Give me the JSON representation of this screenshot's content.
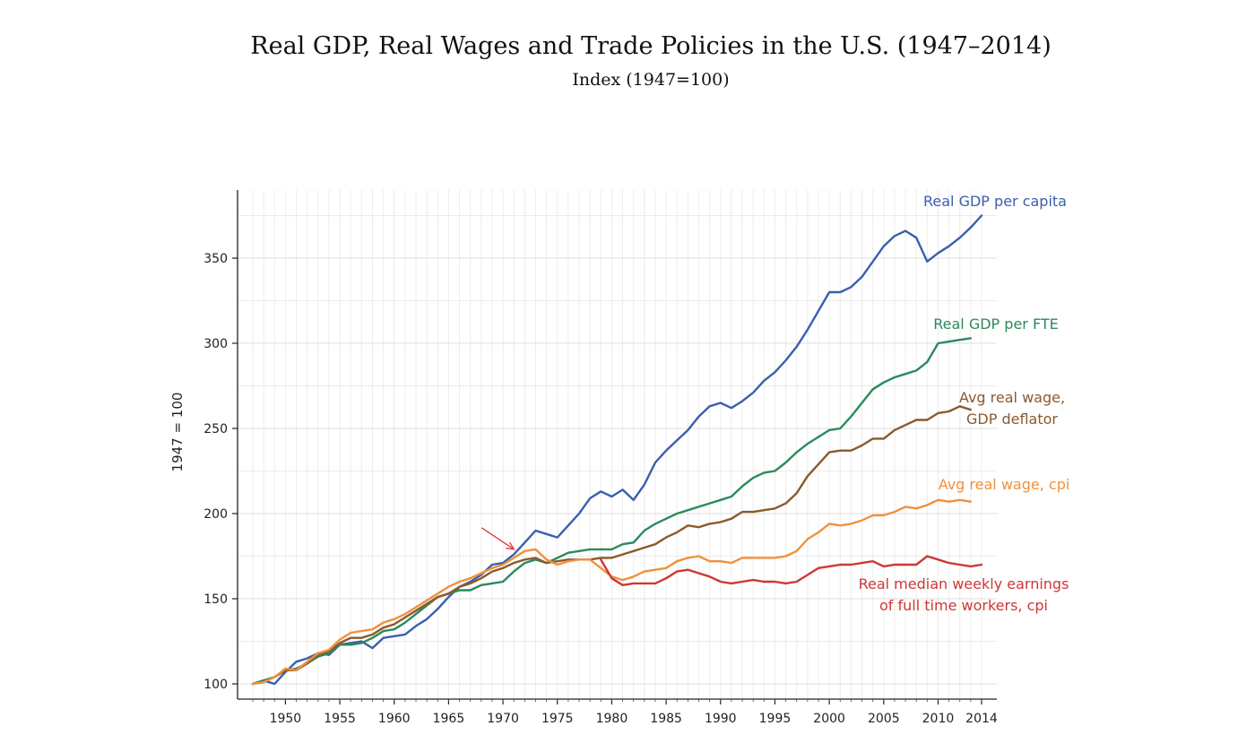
{
  "chart_data": {
    "type": "line",
    "title": "Real GDP, Real Wages and Trade Policies in the U.S. (1947–2014)",
    "subtitle": "Index (1947=100)",
    "ylabel": "1947 = 100",
    "xlim": [
      1947,
      2014
    ],
    "ylim": [
      95,
      380
    ],
    "x_ticks": [
      1950,
      1955,
      1960,
      1965,
      1970,
      1975,
      1980,
      1985,
      1990,
      1995,
      2000,
      2005,
      2010,
      2014
    ],
    "y_ticks": [
      100,
      150,
      200,
      250,
      300,
      350
    ],
    "grid": true,
    "annotations": [
      {
        "type": "arrow",
        "x": 1971,
        "y": 178,
        "color": "#e0403a"
      }
    ],
    "series": [
      {
        "name": "Real GDP per capita",
        "label_lines": [
          "Real GDP per capita"
        ],
        "color": "#3a5fad",
        "x": [
          1947,
          1948,
          1949,
          1950,
          1951,
          1952,
          1953,
          1954,
          1955,
          1956,
          1957,
          1958,
          1959,
          1960,
          1961,
          1962,
          1963,
          1964,
          1965,
          1966,
          1967,
          1968,
          1969,
          1970,
          1971,
          1972,
          1973,
          1974,
          1975,
          1976,
          1977,
          1978,
          1979,
          1980,
          1981,
          1982,
          1983,
          1984,
          1985,
          1986,
          1987,
          1988,
          1989,
          1990,
          1991,
          1992,
          1993,
          1994,
          1995,
          1996,
          1997,
          1998,
          1999,
          2000,
          2001,
          2002,
          2003,
          2004,
          2005,
          2006,
          2007,
          2008,
          2009,
          2010,
          2011,
          2012,
          2013,
          2014
        ],
        "values": [
          100,
          102,
          100,
          107,
          113,
          115,
          118,
          117,
          123,
          124,
          125,
          121,
          127,
          128,
          129,
          134,
          138,
          144,
          151,
          157,
          160,
          164,
          170,
          171,
          176,
          183,
          190,
          188,
          186,
          193,
          200,
          209,
          213,
          210,
          214,
          208,
          217,
          230,
          237,
          243,
          249,
          257,
          263,
          265,
          262,
          266,
          271,
          278,
          283,
          290,
          298,
          308,
          319,
          330,
          330,
          333,
          339,
          348,
          357,
          363,
          366,
          362,
          348,
          353,
          357,
          362,
          368,
          375
        ]
      },
      {
        "name": "Real GDP per FTE",
        "label_lines": [
          "Real GDP per FTE"
        ],
        "color": "#2a8a5c",
        "x": [
          1947,
          1948,
          1949,
          1950,
          1951,
          1952,
          1953,
          1954,
          1955,
          1956,
          1957,
          1958,
          1959,
          1960,
          1961,
          1962,
          1963,
          1964,
          1965,
          1966,
          1967,
          1968,
          1969,
          1970,
          1971,
          1972,
          1973,
          1974,
          1975,
          1976,
          1977,
          1978,
          1979,
          1980,
          1981,
          1982,
          1983,
          1984,
          1985,
          1986,
          1987,
          1988,
          1989,
          1990,
          1991,
          1992,
          1993,
          1994,
          1995,
          1996,
          1997,
          1998,
          1999,
          2000,
          2001,
          2002,
          2003,
          2004,
          2005,
          2006,
          2007,
          2008,
          2009,
          2010,
          2011,
          2012,
          2013
        ],
        "values": [
          100,
          102,
          104,
          108,
          109,
          112,
          116,
          118,
          123,
          123,
          124,
          127,
          131,
          132,
          136,
          141,
          146,
          151,
          153,
          155,
          155,
          158,
          159,
          160,
          166,
          171,
          173,
          171,
          174,
          177,
          178,
          179,
          179,
          179,
          182,
          183,
          190,
          194,
          197,
          200,
          202,
          204,
          206,
          208,
          210,
          216,
          221,
          224,
          225,
          230,
          236,
          241,
          245,
          249,
          250,
          257,
          265,
          273,
          277,
          280,
          282,
          284,
          289,
          300,
          301,
          302,
          303
        ]
      },
      {
        "name": "Avg real wage, GDP deflator",
        "label_lines": [
          "Avg real wage,",
          "GDP deflator"
        ],
        "color": "#8b5a2b",
        "x": [
          1947,
          1948,
          1949,
          1950,
          1951,
          1952,
          1953,
          1954,
          1955,
          1956,
          1957,
          1958,
          1959,
          1960,
          1961,
          1962,
          1963,
          1964,
          1965,
          1966,
          1967,
          1968,
          1969,
          1970,
          1971,
          1972,
          1973,
          1974,
          1975,
          1976,
          1977,
          1978,
          1979,
          1980,
          1981,
          1982,
          1983,
          1984,
          1985,
          1986,
          1987,
          1988,
          1989,
          1990,
          1991,
          1992,
          1993,
          1994,
          1995,
          1996,
          1997,
          1998,
          1999,
          2000,
          2001,
          2002,
          2003,
          2004,
          2005,
          2006,
          2007,
          2008,
          2009,
          2010,
          2011,
          2012,
          2013
        ],
        "values": [
          100,
          101,
          104,
          108,
          108,
          112,
          117,
          119,
          124,
          127,
          127,
          129,
          133,
          135,
          139,
          143,
          147,
          151,
          153,
          157,
          159,
          162,
          166,
          168,
          171,
          173,
          174,
          171,
          172,
          173,
          173,
          173,
          174,
          174,
          176,
          178,
          180,
          182,
          186,
          189,
          193,
          192,
          194,
          195,
          197,
          201,
          201,
          202,
          203,
          206,
          212,
          222,
          229,
          236,
          237,
          237,
          240,
          244,
          244,
          249,
          252,
          255,
          255,
          259,
          260,
          263,
          261
        ]
      },
      {
        "name": "Avg real wage, cpi",
        "label_lines": [
          "Avg real wage, cpi"
        ],
        "color": "#f0913c",
        "x": [
          1947,
          1948,
          1949,
          1950,
          1951,
          1952,
          1953,
          1954,
          1955,
          1956,
          1957,
          1958,
          1959,
          1960,
          1961,
          1962,
          1963,
          1964,
          1965,
          1966,
          1967,
          1968,
          1969,
          1970,
          1971,
          1972,
          1973,
          1974,
          1975,
          1976,
          1977,
          1978,
          1979,
          1980,
          1981,
          1982,
          1983,
          1984,
          1985,
          1986,
          1987,
          1988,
          1989,
          1990,
          1991,
          1992,
          1993,
          1994,
          1995,
          1996,
          1997,
          1998,
          1999,
          2000,
          2001,
          2002,
          2003,
          2004,
          2005,
          2006,
          2007,
          2008,
          2009,
          2010,
          2011,
          2012,
          2013
        ],
        "values": [
          100,
          101,
          104,
          109,
          108,
          113,
          118,
          120,
          126,
          130,
          131,
          132,
          136,
          138,
          141,
          145,
          149,
          153,
          157,
          160,
          162,
          165,
          168,
          170,
          174,
          178,
          179,
          173,
          170,
          172,
          173,
          173,
          168,
          163,
          161,
          163,
          166,
          167,
          168,
          172,
          174,
          175,
          172,
          172,
          171,
          174,
          174,
          174,
          174,
          175,
          178,
          185,
          189,
          194,
          193,
          194,
          196,
          199,
          199,
          201,
          204,
          203,
          205,
          208,
          207,
          208,
          207
        ]
      },
      {
        "name": "Real median weekly earnings of full time workers, cpi",
        "label_lines": [
          "Real median weekly earnings",
          "of full time workers, cpi"
        ],
        "color": "#cf3636",
        "x": [
          1979,
          1980,
          1981,
          1982,
          1983,
          1984,
          1985,
          1986,
          1987,
          1988,
          1989,
          1990,
          1991,
          1992,
          1993,
          1994,
          1995,
          1996,
          1997,
          1998,
          1999,
          2000,
          2001,
          2002,
          2003,
          2004,
          2005,
          2006,
          2007,
          2008,
          2009,
          2010,
          2011,
          2012,
          2013,
          2014
        ],
        "values": [
          173,
          162,
          158,
          159,
          159,
          159,
          162,
          166,
          167,
          165,
          163,
          160,
          159,
          160,
          161,
          160,
          160,
          159,
          160,
          164,
          168,
          169,
          170,
          170,
          171,
          172,
          169,
          170,
          170,
          170,
          175,
          173,
          171,
          170,
          169,
          170
        ]
      }
    ]
  }
}
